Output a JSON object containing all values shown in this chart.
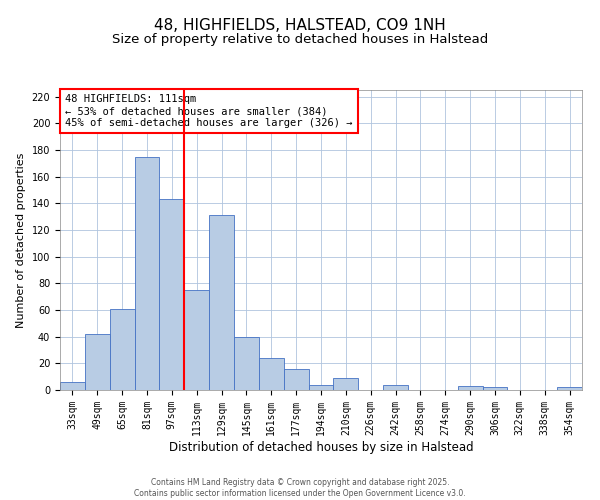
{
  "title": "48, HIGHFIELDS, HALSTEAD, CO9 1NH",
  "subtitle": "Size of property relative to detached houses in Halstead",
  "xlabel": "Distribution of detached houses by size in Halstead",
  "ylabel": "Number of detached properties",
  "bar_labels": [
    "33sqm",
    "49sqm",
    "65sqm",
    "81sqm",
    "97sqm",
    "113sqm",
    "129sqm",
    "145sqm",
    "161sqm",
    "177sqm",
    "194sqm",
    "210sqm",
    "226sqm",
    "242sqm",
    "258sqm",
    "274sqm",
    "290sqm",
    "306sqm",
    "322sqm",
    "338sqm",
    "354sqm"
  ],
  "bar_values": [
    6,
    42,
    61,
    175,
    143,
    75,
    131,
    40,
    24,
    16,
    4,
    9,
    0,
    4,
    0,
    0,
    3,
    2,
    0,
    0,
    2
  ],
  "bar_color": "#b8cce4",
  "bar_edge_color": "#4472c4",
  "vline_x_index": 5,
  "vline_color": "#ff0000",
  "annotation_line1": "48 HIGHFIELDS: 111sqm",
  "annotation_line2": "← 53% of detached houses are smaller (384)",
  "annotation_line3": "45% of semi-detached houses are larger (326) →",
  "ylim": [
    0,
    225
  ],
  "yticks": [
    0,
    20,
    40,
    60,
    80,
    100,
    120,
    140,
    160,
    180,
    200,
    220
  ],
  "background_color": "#ffffff",
  "grid_color": "#b0c4de",
  "footer_text": "Contains HM Land Registry data © Crown copyright and database right 2025.\nContains public sector information licensed under the Open Government Licence v3.0.",
  "title_fontsize": 11,
  "subtitle_fontsize": 9.5,
  "xlabel_fontsize": 8.5,
  "ylabel_fontsize": 8,
  "tick_fontsize": 7,
  "annotation_fontsize": 7.5,
  "footer_fontsize": 5.5
}
